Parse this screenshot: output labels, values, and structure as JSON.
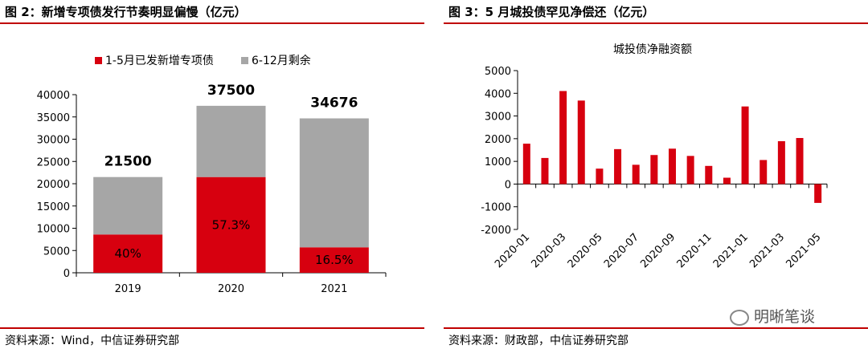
{
  "left": {
    "fig_title": "图 2：新增专项债发行节奏明显偏慢（亿元）",
    "source": "资料来源：Wind，中信证券研究部",
    "chart_data": {
      "type": "bar",
      "stacked": true,
      "categories": [
        "2019",
        "2020",
        "2021"
      ],
      "series": [
        {
          "name": "1-5月已发新增专项债",
          "values": [
            8600,
            21500,
            5720
          ],
          "color": "#d7000f",
          "labels": [
            "40%",
            "57.3%",
            "16.5%"
          ]
        },
        {
          "name": "6-12月剩余",
          "values": [
            12900,
            16000,
            28956
          ],
          "color": "#a6a6a6"
        }
      ],
      "totals": [
        "21500",
        "37500",
        "34676"
      ],
      "ylim": [
        0,
        40000
      ],
      "yticks": [
        0,
        5000,
        10000,
        15000,
        20000,
        25000,
        30000,
        35000,
        40000
      ],
      "legend_position": "top",
      "grid": false
    }
  },
  "right": {
    "fig_title": "图 3：5 月城投债罕见净偿还（亿元）",
    "source": "资料来源：财政部，中信证券研究部",
    "chart_data": {
      "type": "bar",
      "title": "城投债净融资额",
      "x": [
        "2020-01",
        "2020-02",
        "2020-03",
        "2020-04",
        "2020-05",
        "2020-06",
        "2020-07",
        "2020-08",
        "2020-09",
        "2020-10",
        "2020-11",
        "2020-12",
        "2021-01",
        "2021-02",
        "2021-03",
        "2021-04",
        "2021-05"
      ],
      "xtick_labels": [
        "2020-01",
        "2020-03",
        "2020-05",
        "2020-07",
        "2020-09",
        "2020-11",
        "2021-01",
        "2021-03",
        "2021-05"
      ],
      "values": [
        1780,
        1150,
        4100,
        3680,
        680,
        1540,
        850,
        1280,
        1560,
        1240,
        800,
        280,
        3420,
        1060,
        1890,
        2030,
        -830
      ],
      "color": "#d7000f",
      "ylim": [
        -2000,
        5000
      ],
      "yticks": [
        -2000,
        -1000,
        0,
        1000,
        2000,
        3000,
        4000,
        5000
      ],
      "grid": false
    }
  },
  "watermark": {
    "text": "明晰笔谈",
    "icon": "wechat-icon"
  }
}
